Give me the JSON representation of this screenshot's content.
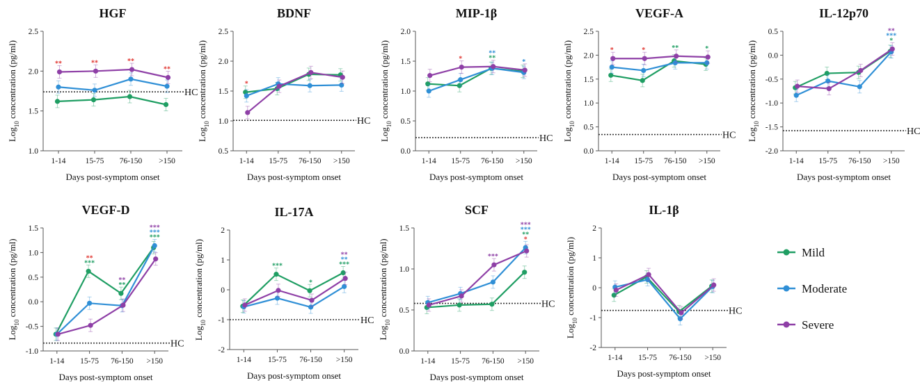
{
  "colors": {
    "Mild": "#1f9e63",
    "Moderate": "#2f8fd6",
    "Severe": "#8e3fa6",
    "hc": "#333333",
    "sig_red": "#e0342f"
  },
  "common": {
    "x_categories": [
      "1-14",
      "15-75",
      "76-150",
      ">150"
    ],
    "xlabel": "Days post-symptom onset",
    "ylabel_prefix": "Log",
    "ylabel_sub": "10",
    "ylabel_suffix": " concentration (pg/ml)",
    "hc_label": "HC"
  },
  "legend": {
    "placement": "right",
    "items": [
      {
        "name": "Mild",
        "color": "#1f9e63"
      },
      {
        "name": "Moderate",
        "color": "#2f8fd6"
      },
      {
        "name": "Severe",
        "color": "#8e3fa6"
      }
    ]
  },
  "chart_data": [
    {
      "type": "line",
      "title": "HGF",
      "xlabel": "Days post-symptom onset",
      "ylim": [
        1.0,
        2.5
      ],
      "yticks": [
        "1.0",
        "1.5",
        "2.0",
        "2.5"
      ],
      "hc": 1.74,
      "categories": [
        "1-14",
        "15-75",
        "76-150",
        ">150"
      ],
      "series": [
        {
          "name": "Mild",
          "values": [
            1.62,
            1.64,
            1.68,
            1.58
          ]
        },
        {
          "name": "Moderate",
          "values": [
            1.8,
            1.76,
            1.9,
            1.81
          ]
        },
        {
          "name": "Severe",
          "values": [
            1.99,
            2.0,
            2.02,
            1.92
          ]
        }
      ],
      "annotations": [
        {
          "x": 0,
          "marks": [
            {
              "text": "**",
              "color": "#e0342f"
            }
          ]
        },
        {
          "x": 1,
          "marks": [
            {
              "text": "**",
              "color": "#e0342f"
            }
          ]
        },
        {
          "x": 2,
          "marks": [
            {
              "text": "**",
              "color": "#e0342f"
            }
          ]
        },
        {
          "x": 3,
          "marks": [
            {
              "text": "**",
              "color": "#e0342f"
            }
          ]
        }
      ]
    },
    {
      "type": "line",
      "title": "BDNF",
      "xlabel": "Days post-symptom onset",
      "ylim": [
        0.5,
        2.5
      ],
      "yticks": [
        "0.5",
        "1.0",
        "1.5",
        "2.0",
        "2.5"
      ],
      "hc": 1.01,
      "categories": [
        "1-14",
        "15-75",
        "76-150",
        ">150"
      ],
      "series": [
        {
          "name": "Mild",
          "values": [
            1.48,
            1.54,
            1.78,
            1.77
          ]
        },
        {
          "name": "Moderate",
          "values": [
            1.42,
            1.62,
            1.59,
            1.6
          ]
        },
        {
          "name": "Severe",
          "values": [
            1.14,
            1.58,
            1.81,
            1.73
          ]
        }
      ],
      "annotations": [
        {
          "x": 0,
          "marks": [
            {
              "text": "*",
              "color": "#e0342f"
            }
          ]
        }
      ]
    },
    {
      "type": "line",
      "title": "MIP-1β",
      "xlabel": "Days post-symptom onset",
      "ylim": [
        0.0,
        2.0
      ],
      "yticks": [
        "0.0",
        "0.5",
        "1.0",
        "1.5",
        "2.0"
      ],
      "hc": 0.22,
      "categories": [
        "1-14",
        "15-75",
        "76-150",
        ">150"
      ],
      "series": [
        {
          "name": "Mild",
          "values": [
            1.12,
            1.09,
            1.38,
            1.33
          ]
        },
        {
          "name": "Moderate",
          "values": [
            1.0,
            1.19,
            1.38,
            1.31
          ]
        },
        {
          "name": "Severe",
          "values": [
            1.26,
            1.4,
            1.41,
            1.35
          ]
        }
      ],
      "annotations": [
        {
          "x": 1,
          "marks": [
            {
              "text": "*",
              "color": "#e0342f"
            }
          ]
        },
        {
          "x": 2,
          "marks": [
            {
              "text": "**",
              "color": "#2f8fd6"
            },
            {
              "text": "**",
              "color": "#1f9e63"
            }
          ]
        },
        {
          "x": 3,
          "marks": [
            {
              "text": "*",
              "color": "#2f8fd6"
            }
          ]
        }
      ]
    },
    {
      "type": "line",
      "title": "VEGF-A",
      "xlabel": "Days post-symptom onset",
      "ylim": [
        0.0,
        2.5
      ],
      "yticks": [
        "0.0",
        "0.5",
        "1.0",
        "1.5",
        "2.0",
        "2.5"
      ],
      "hc": 0.34,
      "categories": [
        "1-14",
        "15-75",
        "76-150",
        ">150"
      ],
      "series": [
        {
          "name": "Mild",
          "values": [
            1.58,
            1.47,
            1.88,
            1.81
          ]
        },
        {
          "name": "Moderate",
          "values": [
            1.75,
            1.68,
            1.84,
            1.84
          ]
        },
        {
          "name": "Severe",
          "values": [
            1.93,
            1.93,
            1.98,
            1.96
          ]
        }
      ],
      "annotations": [
        {
          "x": 0,
          "marks": [
            {
              "text": "*",
              "color": "#e0342f"
            }
          ]
        },
        {
          "x": 1,
          "marks": [
            {
              "text": "*",
              "color": "#e0342f"
            }
          ]
        },
        {
          "x": 2,
          "marks": [
            {
              "text": "**",
              "color": "#1f9e63"
            }
          ]
        },
        {
          "x": 3,
          "marks": [
            {
              "text": "*",
              "color": "#1f9e63"
            }
          ]
        }
      ]
    },
    {
      "type": "line",
      "title": "IL-12p70",
      "xlabel": "Days post-symptom onset",
      "ylim": [
        -2.0,
        0.5
      ],
      "yticks": [
        "-2.0",
        "-1.5",
        "-1.0",
        "-0.5",
        "0.0",
        "0.5"
      ],
      "hc": -1.58,
      "categories": [
        "1-14",
        "15-75",
        "76-150",
        ">150"
      ],
      "series": [
        {
          "name": "Mild",
          "values": [
            -0.68,
            -0.38,
            -0.36,
            0.08
          ]
        },
        {
          "name": "Moderate",
          "values": [
            -0.84,
            -0.54,
            -0.66,
            0.07
          ]
        },
        {
          "name": "Severe",
          "values": [
            -0.65,
            -0.7,
            -0.32,
            0.13
          ]
        }
      ],
      "annotations": [
        {
          "x": 3,
          "marks": [
            {
              "text": "**",
              "color": "#8e3fa6"
            },
            {
              "text": "***",
              "color": "#2f8fd6"
            },
            {
              "text": "*",
              "color": "#1f9e63"
            }
          ]
        }
      ]
    },
    {
      "type": "line",
      "title": "VEGF-D",
      "xlabel": "Days post-symptom onset",
      "ylim": [
        -1.0,
        1.5
      ],
      "yticks": [
        "-1.0",
        "-0.5",
        "0.0",
        "0.5",
        "1.0",
        "1.5"
      ],
      "hc": -0.84,
      "categories": [
        "1-14",
        "15-75",
        "76-150",
        ">150"
      ],
      "series": [
        {
          "name": "Mild",
          "values": [
            -0.66,
            0.62,
            0.17,
            1.1
          ]
        },
        {
          "name": "Moderate",
          "values": [
            -0.66,
            -0.03,
            -0.08,
            1.14
          ]
        },
        {
          "name": "Severe",
          "values": [
            -0.66,
            -0.48,
            -0.07,
            0.87
          ]
        }
      ],
      "annotations": [
        {
          "x": 1,
          "marks": [
            {
              "text": "**",
              "color": "#e0342f"
            },
            {
              "text": "***",
              "color": "#1f9e63"
            }
          ]
        },
        {
          "x": 2,
          "marks": [
            {
              "text": "**",
              "color": "#8e3fa6"
            },
            {
              "text": "**",
              "color": "#1f9e63"
            }
          ]
        },
        {
          "x": 3,
          "marks": [
            {
              "text": "***",
              "color": "#8e3fa6"
            },
            {
              "text": "***",
              "color": "#2f8fd6"
            },
            {
              "text": "***",
              "color": "#1f9e63"
            }
          ]
        }
      ]
    },
    {
      "type": "line",
      "title": "IL-17A",
      "xlabel": "Days post-symptom onset",
      "ylim": [
        -2,
        2
      ],
      "yticks": [
        "-2",
        "-1",
        "0",
        "1",
        "2"
      ],
      "hc": -1.0,
      "categories": [
        "1-14",
        "15-75",
        "76-150",
        ">150"
      ],
      "series": [
        {
          "name": "Mild",
          "values": [
            -0.55,
            0.52,
            -0.03,
            0.57
          ]
        },
        {
          "name": "Moderate",
          "values": [
            -0.57,
            -0.28,
            -0.58,
            0.11
          ]
        },
        {
          "name": "Severe",
          "values": [
            -0.51,
            -0.02,
            -0.35,
            0.38
          ]
        }
      ],
      "annotations": [
        {
          "x": 1,
          "marks": [
            {
              "text": "***",
              "color": "#1f9e63"
            }
          ]
        },
        {
          "x": 2,
          "marks": [
            {
              "text": "*",
              "color": "#1f9e63"
            }
          ]
        },
        {
          "x": 3,
          "marks": [
            {
              "text": "**",
              "color": "#8e3fa6"
            },
            {
              "text": "**",
              "color": "#2f8fd6"
            },
            {
              "text": "***",
              "color": "#1f9e63"
            }
          ]
        }
      ]
    },
    {
      "type": "line",
      "title": "SCF",
      "xlabel": "Days post-symptom onset",
      "ylim": [
        0.0,
        1.5
      ],
      "yticks": [
        "0.0",
        "0.5",
        "1.0",
        "1.5"
      ],
      "hc": 0.58,
      "categories": [
        "1-14",
        "15-75",
        "76-150",
        ">150"
      ],
      "series": [
        {
          "name": "Mild",
          "values": [
            0.53,
            0.56,
            0.57,
            0.96
          ]
        },
        {
          "name": "Moderate",
          "values": [
            0.59,
            0.7,
            0.84,
            1.26
          ]
        },
        {
          "name": "Severe",
          "values": [
            0.56,
            0.67,
            1.05,
            1.22
          ]
        }
      ],
      "annotations": [
        {
          "x": 2,
          "marks": [
            {
              "text": "***",
              "color": "#8e3fa6"
            }
          ]
        },
        {
          "x": 3,
          "marks": [
            {
              "text": "***",
              "color": "#8e3fa6"
            },
            {
              "text": "***",
              "color": "#2f8fd6"
            },
            {
              "text": "**",
              "color": "#1f9e63"
            },
            {
              "text": "*",
              "color": "#e0342f"
            }
          ]
        }
      ]
    },
    {
      "type": "line",
      "title": "IL-1β",
      "xlabel": "Days post-symptom onset",
      "ylim": [
        -2,
        2
      ],
      "yticks": [
        "-2",
        "-1",
        "0",
        "1",
        "2"
      ],
      "hc": -0.76,
      "categories": [
        "1-14",
        "15-75",
        "76-150",
        ">150"
      ],
      "series": [
        {
          "name": "Mild",
          "values": [
            -0.25,
            0.36,
            -0.8,
            0.05
          ]
        },
        {
          "name": "Moderate",
          "values": [
            0.02,
            0.27,
            -1.04,
            0.04
          ]
        },
        {
          "name": "Severe",
          "values": [
            -0.08,
            0.44,
            -0.84,
            0.09
          ]
        }
      ],
      "annotations": []
    }
  ]
}
